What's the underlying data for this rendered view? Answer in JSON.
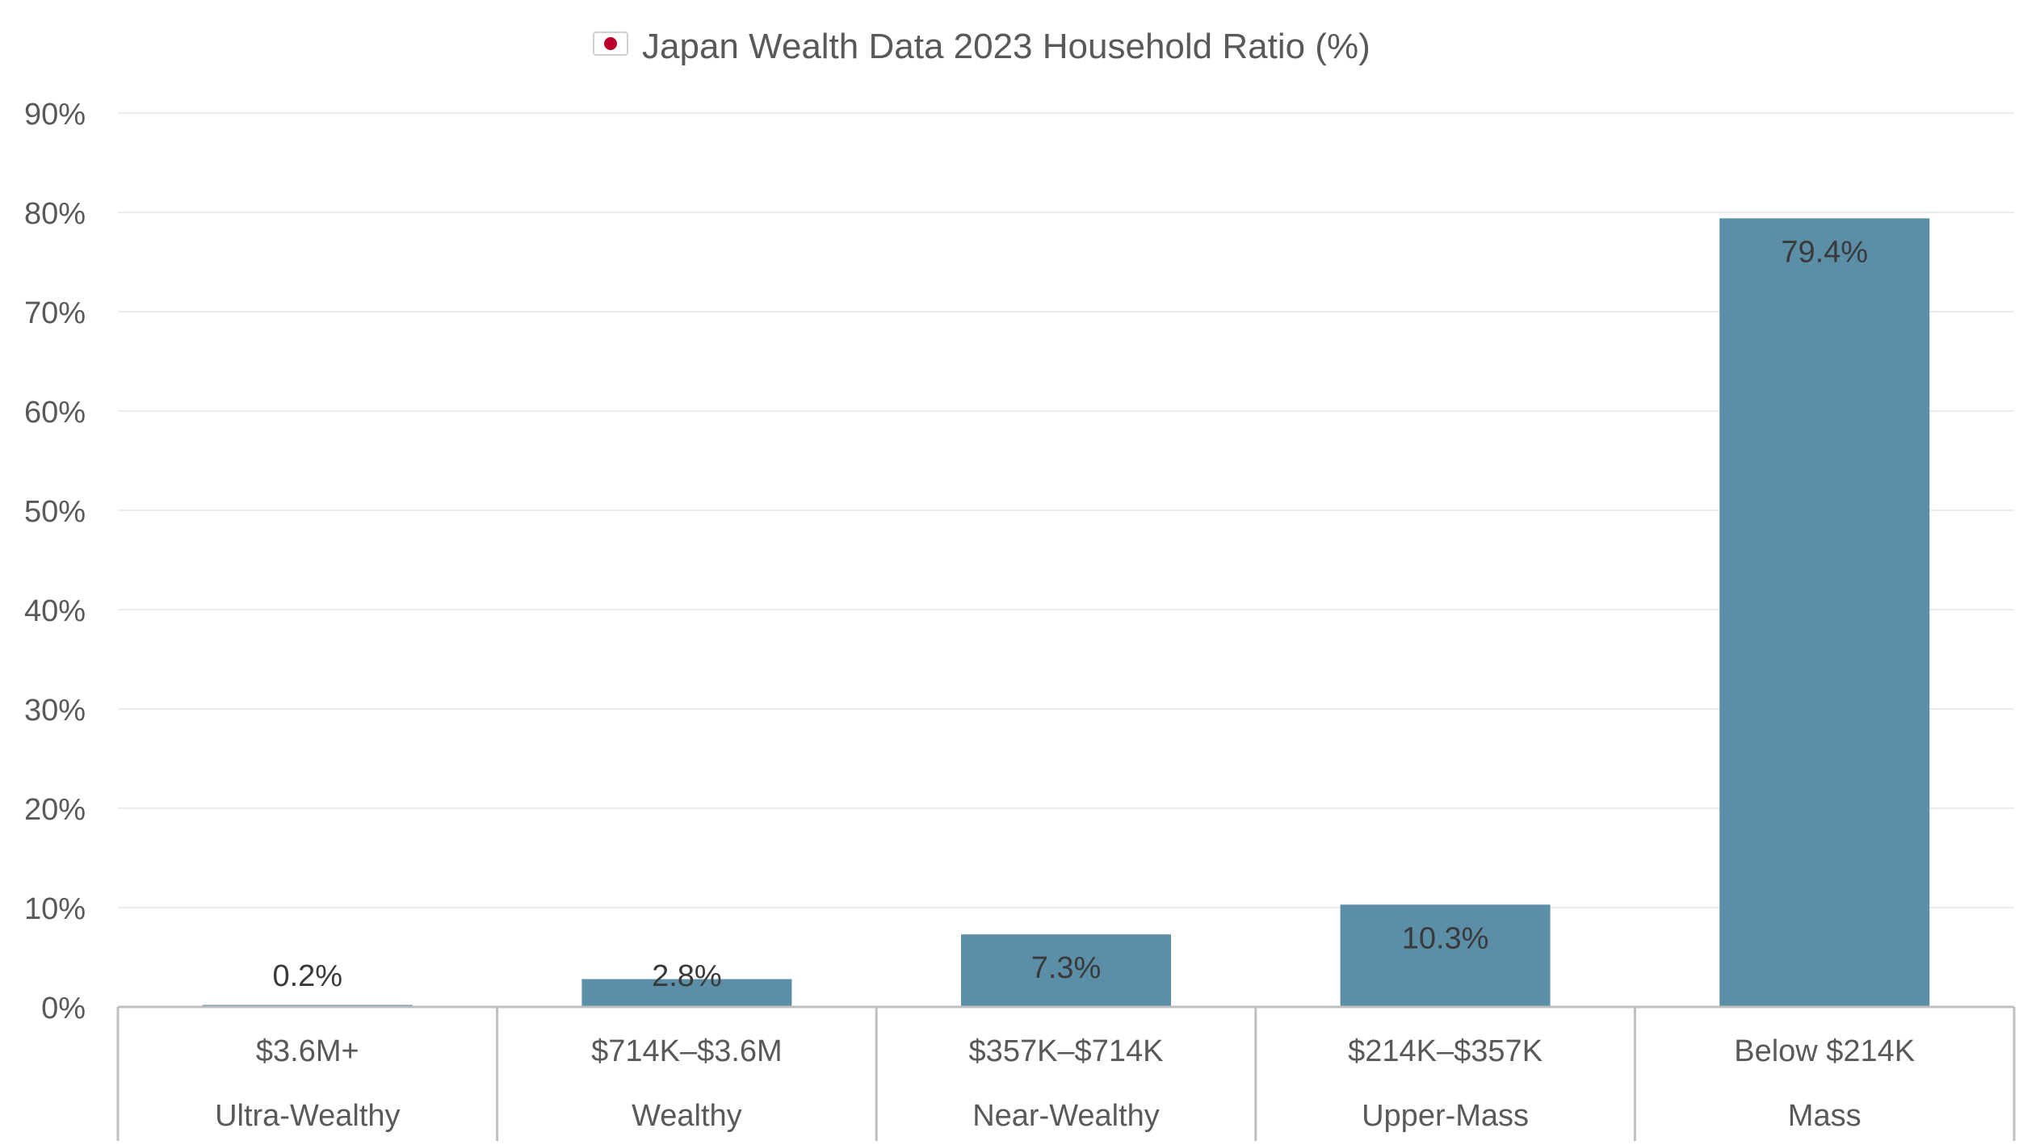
{
  "chart_data": {
    "type": "bar",
    "title": "Japan Wealth Data 2023 Household Ratio (%)",
    "title_icon": "japan-flag-icon",
    "categories": [
      {
        "range": "$3.6M+",
        "segment": "Ultra-Wealthy"
      },
      {
        "range": "$714K–$3.6M",
        "segment": "Wealthy"
      },
      {
        "range": "$357K–$714K",
        "segment": "Near-Wealthy"
      },
      {
        "range": "$214K–$357K",
        "segment": "Upper-Mass"
      },
      {
        "range": "Below $214K",
        "segment": "Mass"
      }
    ],
    "values": [
      0.2,
      2.8,
      7.3,
      10.3,
      79.4
    ],
    "data_labels": [
      "0.2%",
      "2.8%",
      "7.3%",
      "10.3%",
      "79.4%"
    ],
    "ylim": [
      0,
      90
    ],
    "yticks": [
      0,
      10,
      20,
      30,
      40,
      50,
      60,
      70,
      80,
      90
    ],
    "ytick_labels": [
      "0%",
      "10%",
      "20%",
      "30%",
      "40%",
      "50%",
      "60%",
      "70%",
      "80%",
      "90%"
    ],
    "grid": true,
    "legend": "none",
    "colors": {
      "bar": "#5b8fa8",
      "grid": "#ececec",
      "axis": "#bfbfbf",
      "text": "#595959",
      "label": "#3a3a3a"
    }
  }
}
